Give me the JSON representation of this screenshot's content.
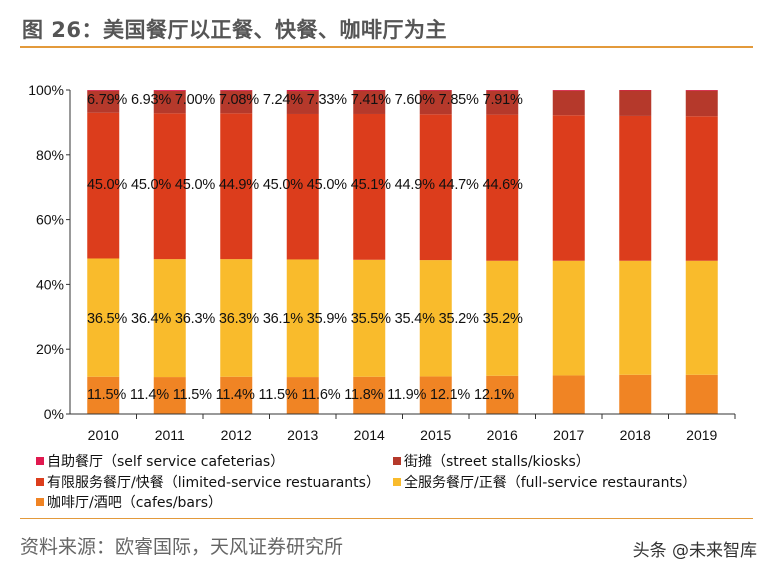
{
  "title": "图 26：美国餐厅以正餐、快餐、咖啡厅为主",
  "source": "资料来源：欧睿国际，天风证券研究所",
  "watermark": "头条 @未来智库",
  "chart_data": {
    "type": "bar",
    "stacked": true,
    "normalized": true,
    "categories": [
      "2010",
      "2011",
      "2012",
      "2013",
      "2014",
      "2015",
      "2016",
      "2017",
      "2018",
      "2019"
    ],
    "ylim": [
      0,
      100
    ],
    "yticks": [
      "0%",
      "20%",
      "40%",
      "60%",
      "80%",
      "100%"
    ],
    "legend_position": "bottom",
    "series": [
      {
        "name": "咖啡厅/酒吧（cafes/bars）",
        "color": "#f08424",
        "values": [
          11.5,
          11.4,
          11.5,
          11.4,
          11.5,
          11.6,
          11.8,
          11.9,
          12.1,
          12.1
        ]
      },
      {
        "name": "全服务餐厅/正餐（full-service  restaurants）",
        "color": "#f9bb2c",
        "values": [
          36.5,
          36.4,
          36.3,
          36.3,
          36.1,
          35.9,
          35.5,
          35.4,
          35.2,
          35.2
        ]
      },
      {
        "name": "有限服务餐厅/快餐（limited-service restuarants）",
        "color": "#dc3d1c",
        "values": [
          45.0,
          45.0,
          45.0,
          44.9,
          45.0,
          45.0,
          45.1,
          44.9,
          44.7,
          44.6
        ]
      },
      {
        "name": "街摊（street stalls/kiosks）",
        "color": "#b5392b",
        "values": [
          6.79,
          6.93,
          7.0,
          7.08,
          7.24,
          7.33,
          7.41,
          7.6,
          7.85,
          7.91
        ]
      },
      {
        "name": "自助餐厅（self service cafeterias）",
        "color": "#e0194f",
        "values": [
          0.21,
          0.27,
          0.2,
          0.32,
          0.16,
          0.17,
          0.19,
          0.2,
          0.15,
          0.19
        ]
      }
    ],
    "data_label_rows": [
      [
        "6.79%",
        "6.93%",
        "7.00%",
        "7.08%",
        "7.24%",
        "7.33%",
        "7.41%",
        "7.60%",
        "7.85%",
        "7.91%"
      ],
      [
        "45.0%",
        "45.0%",
        "45.0%",
        "44.9%",
        "45.0%",
        "45.0%",
        "45.1%",
        "44.9%",
        "44.7%",
        "44.6%"
      ],
      [
        "36.5%",
        "36.4%",
        "36.3%",
        "36.3%",
        "36.1%",
        "35.9%",
        "35.5%",
        "35.4%",
        "35.2%",
        "35.2%"
      ],
      [
        "11.5%",
        "11.4%",
        "11.5%",
        "11.4%",
        "11.5%",
        "11.6%",
        "11.8%",
        "11.9%",
        "12.1%",
        "12.1%"
      ]
    ],
    "legend_order": [
      4,
      3,
      2,
      1,
      0
    ]
  }
}
